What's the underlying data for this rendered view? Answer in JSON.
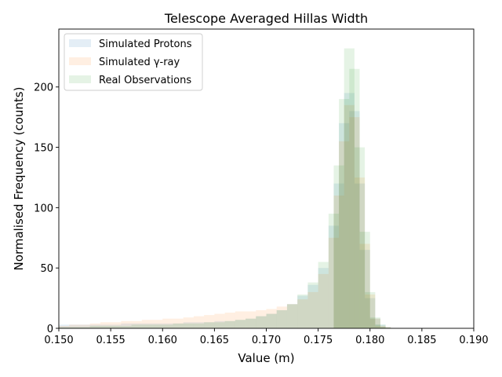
{
  "chart_data": {
    "type": "bar",
    "title": "Telescope Averaged Hillas Width",
    "xlabel": "Value (m)",
    "ylabel": "Normalised Frequency (counts)",
    "xlim": [
      0.15,
      0.19
    ],
    "ylim": [
      0,
      248
    ],
    "x_ticks": [
      "0.150",
      "0.155",
      "0.160",
      "0.165",
      "0.170",
      "0.175",
      "0.180",
      "0.185",
      "0.190"
    ],
    "y_ticks": [
      "0",
      "50",
      "100",
      "150",
      "200"
    ],
    "grid": false,
    "legend_position": "top-left",
    "x": [
      0.1505,
      0.1515,
      0.1525,
      0.1535,
      0.1545,
      0.1555,
      0.1565,
      0.1575,
      0.1585,
      0.1595,
      0.1605,
      0.1615,
      0.1625,
      0.1635,
      0.1645,
      0.1655,
      0.1665,
      0.1675,
      0.1685,
      0.1695,
      0.1705,
      0.1715,
      0.1725,
      0.1735,
      0.1745,
      0.1755,
      0.1765,
      0.177,
      0.1775,
      0.178,
      0.1785,
      0.179,
      0.1795,
      0.18,
      0.1805,
      0.181,
      0.1815,
      0.182
    ],
    "series": [
      {
        "name": "Simulated Protons",
        "color": "#1f77b4",
        "values": [
          3,
          3,
          3,
          3,
          3,
          3,
          4,
          4,
          4,
          4,
          4,
          4,
          5,
          5,
          5,
          6,
          6,
          7,
          8,
          10,
          12,
          15,
          20,
          27,
          36,
          50,
          85,
          120,
          170,
          195,
          180,
          120,
          65,
          25,
          8,
          3,
          1,
          0
        ]
      },
      {
        "name": "Simulated γ-ray",
        "color": "#ff7f0e",
        "values": [
          2,
          3,
          3,
          4,
          5,
          5,
          6,
          6,
          7,
          7,
          8,
          8,
          9,
          10,
          11,
          12,
          13,
          14,
          14,
          15,
          16,
          18,
          20,
          24,
          30,
          45,
          75,
          110,
          155,
          185,
          175,
          125,
          70,
          28,
          8,
          2,
          1,
          0
        ]
      },
      {
        "name": "Real Observations",
        "color": "#2ca02c",
        "values": [
          1,
          1,
          1,
          2,
          2,
          2,
          2,
          3,
          3,
          3,
          3,
          4,
          4,
          4,
          5,
          5,
          6,
          7,
          8,
          10,
          12,
          15,
          20,
          28,
          38,
          55,
          95,
          135,
          190,
          232,
          215,
          150,
          80,
          30,
          9,
          3,
          1,
          0
        ]
      }
    ]
  }
}
